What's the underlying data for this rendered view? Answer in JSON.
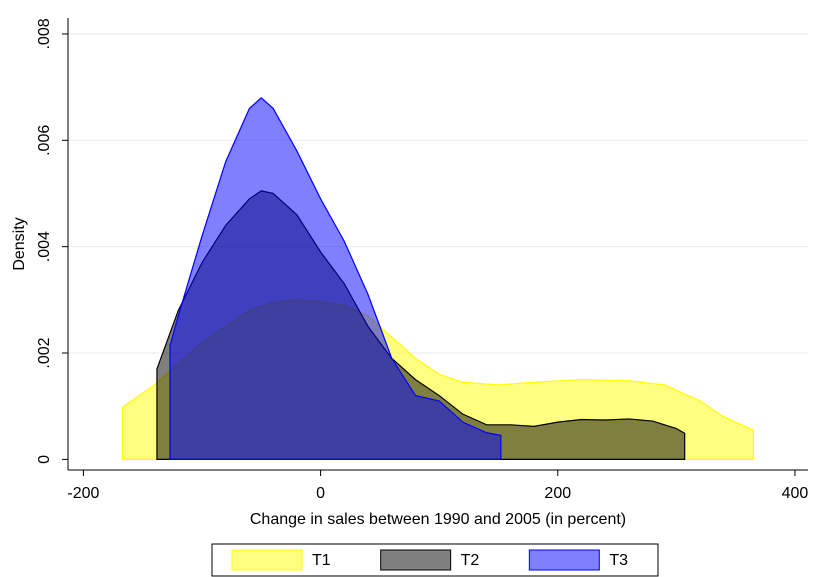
{
  "chart_data": {
    "type": "area",
    "xlabel": "Change in sales between 1990 and 2005 (in percent)",
    "ylabel": "Density",
    "xlim": [
      -213,
      411
    ],
    "ylim": [
      -0.0002,
      0.0083
    ],
    "xticks": [
      -200,
      0,
      200,
      400
    ],
    "yticks": [
      0,
      {
        "value": 0.002,
        "label": ".002"
      },
      {
        "value": 0.004,
        "label": ".004"
      },
      {
        "value": 0.006,
        "label": ".006"
      },
      {
        "value": 0.008,
        "label": ".008"
      }
    ],
    "grid": true,
    "opacity": 0.5,
    "legend": "bottom",
    "series": [
      {
        "name": "T1",
        "color": "#ffff00",
        "x": [
          -167,
          -140,
          -120,
          -100,
          -80,
          -60,
          -40,
          -20,
          0,
          20,
          40,
          60,
          80,
          100,
          120,
          150,
          180,
          220,
          260,
          290,
          320,
          340,
          365
        ],
        "values": [
          0.00098,
          0.0014,
          0.0018,
          0.0022,
          0.0025,
          0.0028,
          0.00295,
          0.003,
          0.00297,
          0.0029,
          0.0027,
          0.0023,
          0.0019,
          0.0016,
          0.00145,
          0.0014,
          0.00145,
          0.0015,
          0.00148,
          0.0014,
          0.0011,
          0.0008,
          0.00055
        ]
      },
      {
        "name": "T2",
        "color": "#000000",
        "x": [
          -138,
          -120,
          -100,
          -80,
          -60,
          -50,
          -40,
          -20,
          0,
          20,
          40,
          60,
          80,
          100,
          120,
          140,
          160,
          180,
          200,
          220,
          240,
          260,
          280,
          300,
          307
        ],
        "values": [
          0.0017,
          0.0028,
          0.0037,
          0.0044,
          0.0049,
          0.00505,
          0.005,
          0.0046,
          0.0039,
          0.0033,
          0.0025,
          0.0019,
          0.0015,
          0.0012,
          0.00085,
          0.00065,
          0.00065,
          0.00062,
          0.0007,
          0.00075,
          0.00074,
          0.00076,
          0.00072,
          0.00058,
          0.00049
        ]
      },
      {
        "name": "T3",
        "color": "#0000ff",
        "x": [
          -127,
          -120,
          -100,
          -80,
          -60,
          -50,
          -40,
          -20,
          0,
          20,
          40,
          60,
          80,
          100,
          120,
          140,
          152
        ],
        "values": [
          0.00214,
          0.0027,
          0.0042,
          0.0056,
          0.0066,
          0.0068,
          0.0066,
          0.0058,
          0.0049,
          0.0041,
          0.0031,
          0.0019,
          0.0012,
          0.0011,
          0.0007,
          0.0005,
          0.00045
        ]
      }
    ]
  }
}
